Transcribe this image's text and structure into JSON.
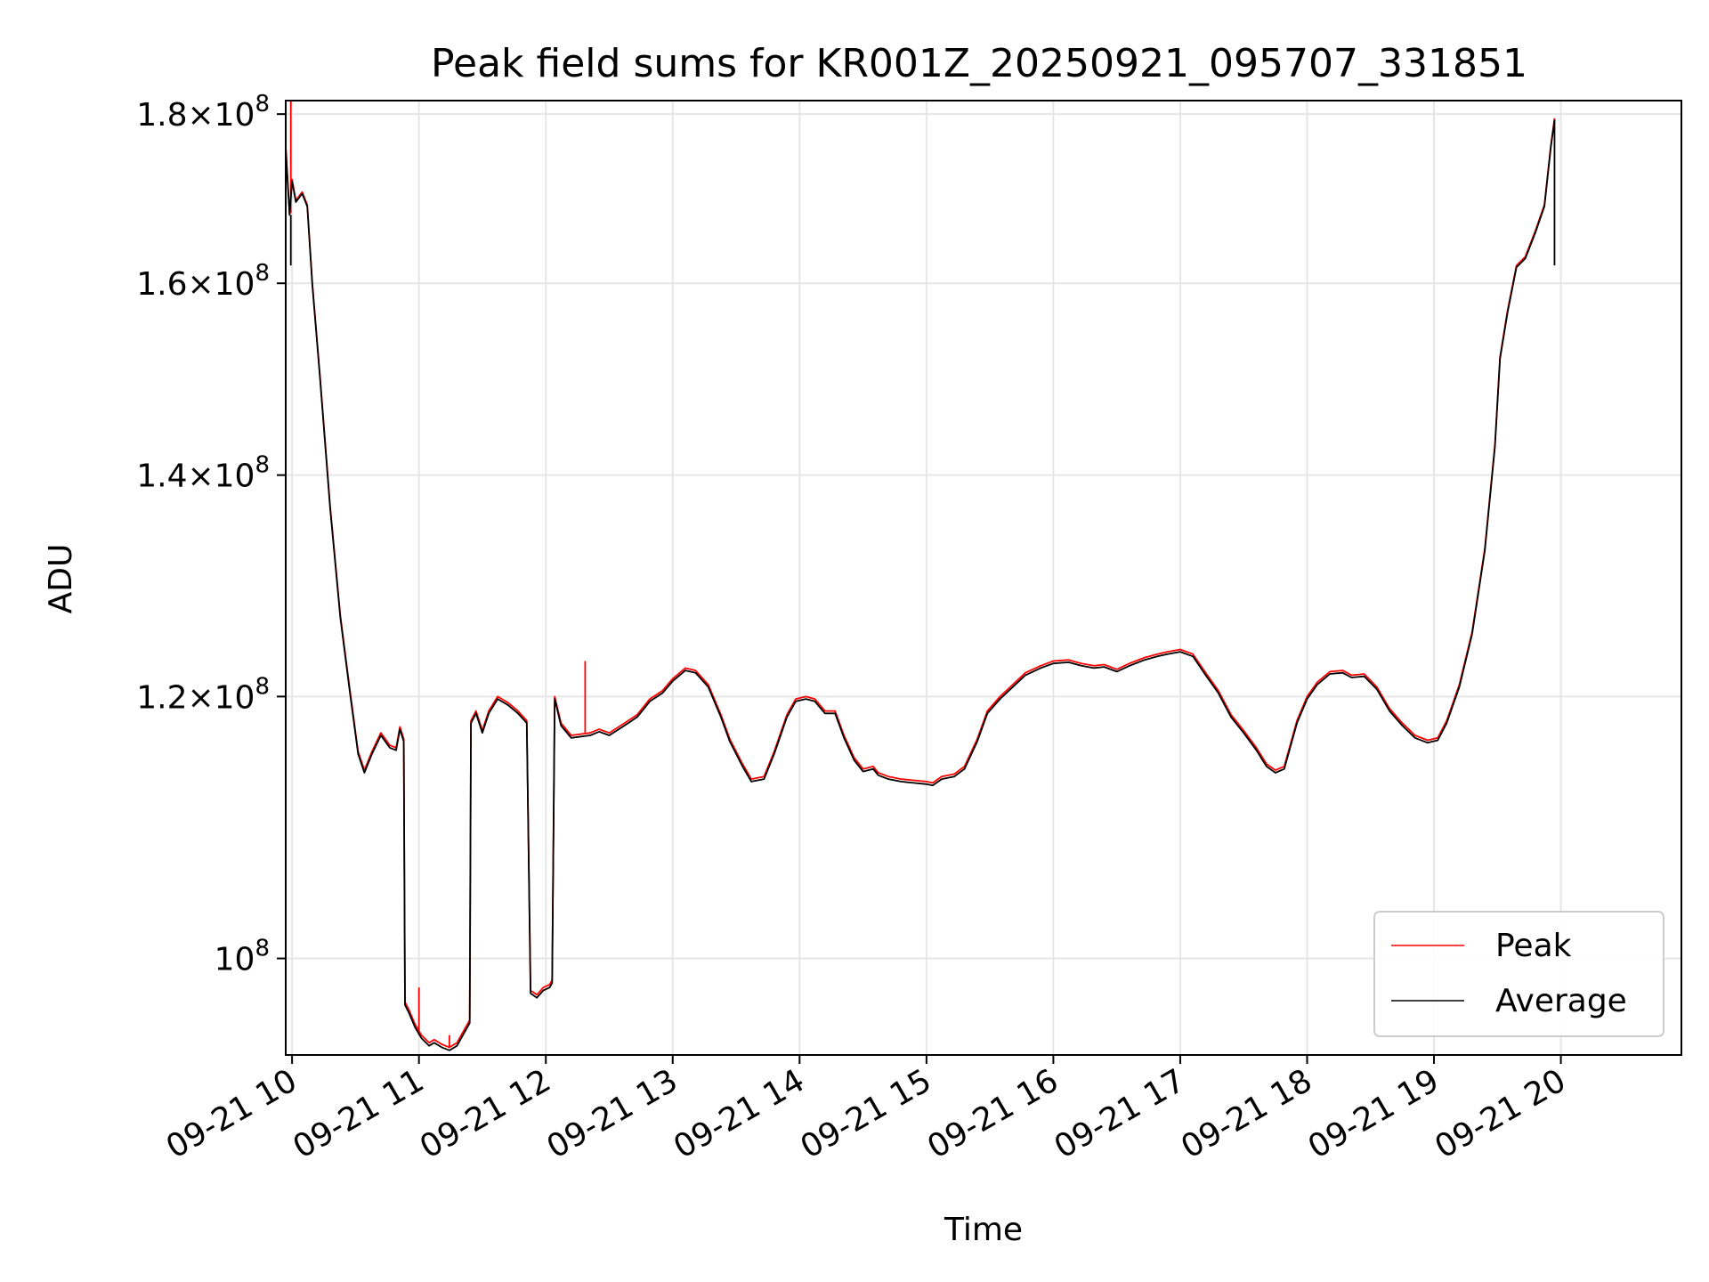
{
  "chart_data": {
    "type": "line",
    "title": "Peak field sums for KR001Z_20250921_095707_331851",
    "xlabel": "Time",
    "ylabel": "ADU",
    "yscale": "log",
    "xlim": [
      9.95,
      20.95
    ],
    "ylim": [
      93500000,
      181700000
    ],
    "grid": true,
    "legend_position": "lower-right",
    "x_ticks": [
      {
        "value": 10,
        "label": "09-21 10"
      },
      {
        "value": 11,
        "label": "09-21 11"
      },
      {
        "value": 12,
        "label": "09-21 12"
      },
      {
        "value": 13,
        "label": "09-21 13"
      },
      {
        "value": 14,
        "label": "09-21 14"
      },
      {
        "value": 15,
        "label": "09-21 15"
      },
      {
        "value": 16,
        "label": "09-21 16"
      },
      {
        "value": 17,
        "label": "09-21 17"
      },
      {
        "value": 18,
        "label": "09-21 18"
      },
      {
        "value": 19,
        "label": "09-21 19"
      },
      {
        "value": 20,
        "label": "09-21 20"
      }
    ],
    "y_ticks": [
      {
        "value": 100000000,
        "mantissa": "",
        "exponent": "8"
      },
      {
        "value": 120000000,
        "mantissa": "1.2",
        "exponent": "8"
      },
      {
        "value": 140000000,
        "mantissa": "1.4",
        "exponent": "8"
      },
      {
        "value": 160000000,
        "mantissa": "1.6",
        "exponent": "8"
      },
      {
        "value": 180000000,
        "mantissa": "1.8",
        "exponent": "8"
      }
    ],
    "y_tick_base": "10",
    "series": [
      {
        "name": "Peak",
        "color": "#ff0000",
        "spikes": [
          [
            9.99,
            185000000
          ],
          [
            11.0,
            98000000
          ],
          [
            11.24,
            94800000
          ],
          [
            12.31,
            123000000
          ]
        ],
        "points": [
          [
            9.95,
            176000000
          ],
          [
            9.98,
            168000000
          ],
          [
            10.0,
            172000000
          ],
          [
            10.03,
            169500000
          ],
          [
            10.08,
            170500000
          ],
          [
            10.12,
            169000000
          ],
          [
            10.16,
            160000000
          ],
          [
            10.22,
            150000000
          ],
          [
            10.3,
            137000000
          ],
          [
            10.38,
            127000000
          ],
          [
            10.45,
            121000000
          ],
          [
            10.52,
            115500000
          ],
          [
            10.57,
            114000000
          ],
          [
            10.63,
            115500000
          ],
          [
            10.7,
            117000000
          ],
          [
            10.77,
            116000000
          ],
          [
            10.82,
            115800000
          ],
          [
            10.85,
            117500000
          ],
          [
            10.88,
            116500000
          ],
          [
            10.89,
            97000000
          ],
          [
            10.92,
            96500000
          ],
          [
            10.97,
            95500000
          ],
          [
            11.02,
            94800000
          ],
          [
            11.08,
            94300000
          ],
          [
            11.12,
            94500000
          ],
          [
            11.18,
            94200000
          ],
          [
            11.24,
            94000000
          ],
          [
            11.3,
            94300000
          ],
          [
            11.36,
            95200000
          ],
          [
            11.4,
            95800000
          ],
          [
            11.41,
            118000000
          ],
          [
            11.45,
            118800000
          ],
          [
            11.5,
            117200000
          ],
          [
            11.55,
            118800000
          ],
          [
            11.62,
            120000000
          ],
          [
            11.7,
            119500000
          ],
          [
            11.78,
            118800000
          ],
          [
            11.85,
            118000000
          ],
          [
            11.88,
            97800000
          ],
          [
            11.93,
            97500000
          ],
          [
            11.98,
            98000000
          ],
          [
            12.03,
            98200000
          ],
          [
            12.05,
            98500000
          ],
          [
            12.07,
            120000000
          ],
          [
            12.12,
            117800000
          ],
          [
            12.2,
            116800000
          ],
          [
            12.35,
            117000000
          ],
          [
            12.42,
            117300000
          ],
          [
            12.5,
            117000000
          ],
          [
            12.62,
            117800000
          ],
          [
            12.72,
            118500000
          ],
          [
            12.82,
            119800000
          ],
          [
            12.92,
            120500000
          ],
          [
            13.0,
            121500000
          ],
          [
            13.1,
            122400000
          ],
          [
            13.18,
            122200000
          ],
          [
            13.28,
            121000000
          ],
          [
            13.38,
            118500000
          ],
          [
            13.45,
            116500000
          ],
          [
            13.55,
            114500000
          ],
          [
            13.62,
            113300000
          ],
          [
            13.72,
            113500000
          ],
          [
            13.8,
            115500000
          ],
          [
            13.9,
            118500000
          ],
          [
            13.97,
            119800000
          ],
          [
            14.05,
            120000000
          ],
          [
            14.12,
            119800000
          ],
          [
            14.2,
            118800000
          ],
          [
            14.28,
            118800000
          ],
          [
            14.35,
            116800000
          ],
          [
            14.43,
            115000000
          ],
          [
            14.5,
            114100000
          ],
          [
            14.58,
            114300000
          ],
          [
            14.62,
            113800000
          ],
          [
            14.7,
            113500000
          ],
          [
            14.8,
            113300000
          ],
          [
            14.9,
            113200000
          ],
          [
            15.0,
            113100000
          ],
          [
            15.05,
            113000000
          ],
          [
            15.12,
            113500000
          ],
          [
            15.22,
            113700000
          ],
          [
            15.3,
            114300000
          ],
          [
            15.4,
            116500000
          ],
          [
            15.48,
            118800000
          ],
          [
            15.58,
            120000000
          ],
          [
            15.68,
            121000000
          ],
          [
            15.78,
            122000000
          ],
          [
            15.9,
            122600000
          ],
          [
            16.0,
            123000000
          ],
          [
            16.12,
            123100000
          ],
          [
            16.22,
            122800000
          ],
          [
            16.32,
            122600000
          ],
          [
            16.4,
            122700000
          ],
          [
            16.5,
            122300000
          ],
          [
            16.6,
            122800000
          ],
          [
            16.72,
            123300000
          ],
          [
            16.82,
            123600000
          ],
          [
            16.9,
            123800000
          ],
          [
            17.0,
            124000000
          ],
          [
            17.1,
            123600000
          ],
          [
            17.2,
            122000000
          ],
          [
            17.3,
            120500000
          ],
          [
            17.4,
            118500000
          ],
          [
            17.5,
            117200000
          ],
          [
            17.6,
            115800000
          ],
          [
            17.68,
            114500000
          ],
          [
            17.75,
            114000000
          ],
          [
            17.82,
            114300000
          ],
          [
            17.92,
            118000000
          ],
          [
            18.0,
            120000000
          ],
          [
            18.08,
            121200000
          ],
          [
            18.18,
            122100000
          ],
          [
            18.28,
            122200000
          ],
          [
            18.35,
            121800000
          ],
          [
            18.45,
            121900000
          ],
          [
            18.55,
            120800000
          ],
          [
            18.65,
            119000000
          ],
          [
            18.75,
            117800000
          ],
          [
            18.85,
            116800000
          ],
          [
            18.95,
            116400000
          ],
          [
            19.03,
            116600000
          ],
          [
            19.1,
            118000000
          ],
          [
            19.2,
            121000000
          ],
          [
            19.3,
            125500000
          ],
          [
            19.4,
            133000000
          ],
          [
            19.48,
            143000000
          ],
          [
            19.52,
            152000000
          ],
          [
            19.58,
            157000000
          ],
          [
            19.65,
            162000000
          ],
          [
            19.72,
            163000000
          ],
          [
            19.8,
            166000000
          ],
          [
            19.87,
            169000000
          ],
          [
            19.92,
            176000000
          ],
          [
            19.95,
            179500000
          ]
        ]
      },
      {
        "name": "Average",
        "color": "#000000",
        "spikes": [
          [
            9.99,
            162000000
          ],
          [
            19.95,
            162000000
          ]
        ],
        "points": [
          [
            9.95,
            175800000
          ],
          [
            9.98,
            167800000
          ],
          [
            10.0,
            171800000
          ],
          [
            10.03,
            169300000
          ],
          [
            10.08,
            170300000
          ],
          [
            10.12,
            168800000
          ],
          [
            10.16,
            159800000
          ],
          [
            10.22,
            149800000
          ],
          [
            10.3,
            136800000
          ],
          [
            10.38,
            126800000
          ],
          [
            10.45,
            120800000
          ],
          [
            10.52,
            115300000
          ],
          [
            10.57,
            113800000
          ],
          [
            10.63,
            115300000
          ],
          [
            10.7,
            116800000
          ],
          [
            10.77,
            115800000
          ],
          [
            10.82,
            115600000
          ],
          [
            10.85,
            117300000
          ],
          [
            10.88,
            116300000
          ],
          [
            10.89,
            96800000
          ],
          [
            10.92,
            96300000
          ],
          [
            10.97,
            95300000
          ],
          [
            11.02,
            94600000
          ],
          [
            11.08,
            94100000
          ],
          [
            11.12,
            94300000
          ],
          [
            11.18,
            94000000
          ],
          [
            11.24,
            93800000
          ],
          [
            11.3,
            94100000
          ],
          [
            11.36,
            95000000
          ],
          [
            11.4,
            95600000
          ],
          [
            11.41,
            117800000
          ],
          [
            11.45,
            118600000
          ],
          [
            11.5,
            117000000
          ],
          [
            11.55,
            118600000
          ],
          [
            11.62,
            119800000
          ],
          [
            11.7,
            119300000
          ],
          [
            11.78,
            118600000
          ],
          [
            11.85,
            117800000
          ],
          [
            11.88,
            97600000
          ],
          [
            11.93,
            97300000
          ],
          [
            11.98,
            97800000
          ],
          [
            12.03,
            98000000
          ],
          [
            12.05,
            98300000
          ],
          [
            12.07,
            119800000
          ],
          [
            12.12,
            117600000
          ],
          [
            12.2,
            116600000
          ],
          [
            12.35,
            116800000
          ],
          [
            12.42,
            117100000
          ],
          [
            12.5,
            116800000
          ],
          [
            12.62,
            117600000
          ],
          [
            12.72,
            118300000
          ],
          [
            12.82,
            119600000
          ],
          [
            12.92,
            120300000
          ],
          [
            13.0,
            121300000
          ],
          [
            13.1,
            122200000
          ],
          [
            13.18,
            122000000
          ],
          [
            13.28,
            120800000
          ],
          [
            13.38,
            118300000
          ],
          [
            13.45,
            116300000
          ],
          [
            13.55,
            114300000
          ],
          [
            13.62,
            113100000
          ],
          [
            13.72,
            113300000
          ],
          [
            13.8,
            115300000
          ],
          [
            13.9,
            118300000
          ],
          [
            13.97,
            119600000
          ],
          [
            14.05,
            119800000
          ],
          [
            14.12,
            119600000
          ],
          [
            14.2,
            118600000
          ],
          [
            14.28,
            118600000
          ],
          [
            14.35,
            116600000
          ],
          [
            14.43,
            114800000
          ],
          [
            14.5,
            113900000
          ],
          [
            14.58,
            114100000
          ],
          [
            14.62,
            113600000
          ],
          [
            14.7,
            113300000
          ],
          [
            14.8,
            113100000
          ],
          [
            14.9,
            113000000
          ],
          [
            15.0,
            112900000
          ],
          [
            15.05,
            112800000
          ],
          [
            15.12,
            113300000
          ],
          [
            15.22,
            113500000
          ],
          [
            15.3,
            114100000
          ],
          [
            15.4,
            116300000
          ],
          [
            15.48,
            118600000
          ],
          [
            15.58,
            119800000
          ],
          [
            15.68,
            120800000
          ],
          [
            15.78,
            121800000
          ],
          [
            15.9,
            122400000
          ],
          [
            16.0,
            122800000
          ],
          [
            16.12,
            122900000
          ],
          [
            16.22,
            122600000
          ],
          [
            16.32,
            122400000
          ],
          [
            16.4,
            122500000
          ],
          [
            16.5,
            122100000
          ],
          [
            16.6,
            122600000
          ],
          [
            16.72,
            123100000
          ],
          [
            16.82,
            123400000
          ],
          [
            16.9,
            123600000
          ],
          [
            17.0,
            123800000
          ],
          [
            17.1,
            123400000
          ],
          [
            17.2,
            121800000
          ],
          [
            17.3,
            120300000
          ],
          [
            17.4,
            118300000
          ],
          [
            17.5,
            117000000
          ],
          [
            17.6,
            115600000
          ],
          [
            17.68,
            114300000
          ],
          [
            17.75,
            113800000
          ],
          [
            17.82,
            114100000
          ],
          [
            17.92,
            117800000
          ],
          [
            18.0,
            119800000
          ],
          [
            18.08,
            121000000
          ],
          [
            18.18,
            121900000
          ],
          [
            18.28,
            122000000
          ],
          [
            18.35,
            121600000
          ],
          [
            18.45,
            121700000
          ],
          [
            18.55,
            120600000
          ],
          [
            18.65,
            118800000
          ],
          [
            18.75,
            117600000
          ],
          [
            18.85,
            116600000
          ],
          [
            18.95,
            116200000
          ],
          [
            19.03,
            116400000
          ],
          [
            19.1,
            117800000
          ],
          [
            19.2,
            120800000
          ],
          [
            19.3,
            125300000
          ],
          [
            19.4,
            132800000
          ],
          [
            19.48,
            142800000
          ],
          [
            19.52,
            151800000
          ],
          [
            19.58,
            156800000
          ],
          [
            19.65,
            161800000
          ],
          [
            19.72,
            162800000
          ],
          [
            19.8,
            165800000
          ],
          [
            19.87,
            168800000
          ],
          [
            19.92,
            175800000
          ],
          [
            19.95,
            179300000
          ]
        ]
      }
    ]
  }
}
